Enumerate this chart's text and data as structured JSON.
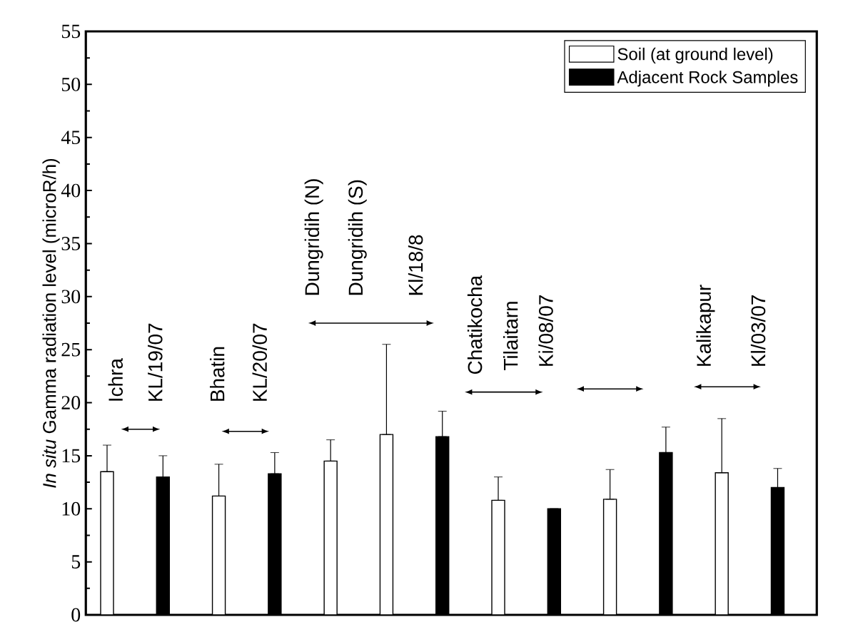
{
  "chart_data": {
    "type": "bar",
    "ylabel": "*In situ* Gamma radiation level (microR/h)",
    "categories": [
      null,
      null,
      null,
      null,
      null,
      null,
      null,
      null,
      null,
      null,
      null,
      null,
      null
    ],
    "stacked": true,
    "series": [
      {
        "name": "Soil (at ground level)",
        "color": "#ffffff",
        "values": [
          13.5,
          null,
          11.2,
          null,
          14.5,
          17.0,
          null,
          10.8,
          null,
          10.9,
          null,
          13.4,
          null
        ],
        "errors": [
          [
            13.5,
            16.0
          ],
          null,
          [
            11.2,
            14.2
          ],
          null,
          [
            14.5,
            16.5
          ],
          [
            17.0,
            25.5
          ],
          null,
          [
            10.8,
            13.0
          ],
          null,
          [
            10.9,
            13.7
          ],
          null,
          [
            13.4,
            18.5
          ],
          null
        ]
      },
      {
        "name": "Adjacent Rock Samples",
        "color": "#000000",
        "values": [
          null,
          13.0,
          null,
          13.3,
          null,
          null,
          16.8,
          null,
          10.0,
          null,
          15.3,
          null,
          12.0
        ],
        "errors": [
          null,
          [
            13.0,
            15.0
          ],
          null,
          [
            13.3,
            15.3
          ],
          null,
          null,
          [
            16.8,
            19.2
          ],
          null,
          null,
          null,
          [
            15.3,
            17.7
          ],
          null,
          [
            12.0,
            13.8
          ]
        ]
      }
    ],
    "ylim": [
      0,
      55
    ],
    "yticks": [
      0,
      5,
      10,
      15,
      20,
      25,
      30,
      35,
      40,
      45,
      50,
      55
    ],
    "tick_labels": "y",
    "legend": "top right",
    "annotations": [
      "Ichra",
      "KL/19/07",
      "Bhatin",
      "KL/20/07",
      "Dungridih (N)",
      "Dungridih (S)",
      "Kl/18/8",
      "Chatikocha",
      "Tilaitarn",
      "Ki/08/07",
      "Kalikapur",
      "Kl/03/07"
    ]
  }
}
